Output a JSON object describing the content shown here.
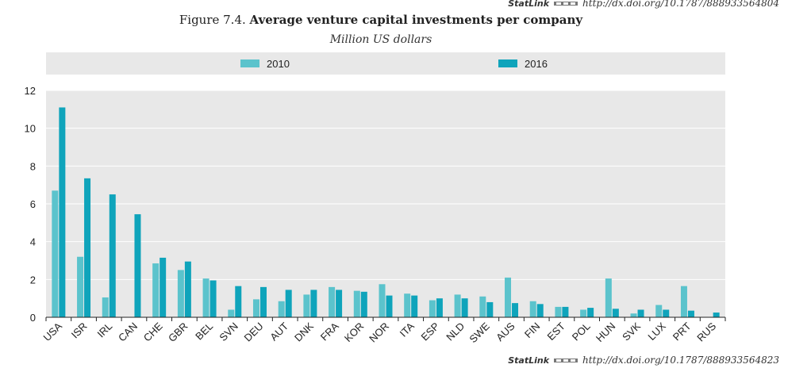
{
  "statlink_top": {
    "brand": "StatLink",
    "url": "http://dx.doi.org/10.1787/888933564804"
  },
  "statlink_bottom": {
    "brand": "StatLink",
    "url": "http://dx.doi.org/10.1787/888933564823"
  },
  "figure_number": "Figure 7.4.",
  "title": "Average venture capital investments per company",
  "subtitle": "Million US dollars",
  "colors": {
    "s2010": "#5bc3cc",
    "s2016": "#0fa4bb",
    "plot_bg": "#e8e8e8",
    "grid": "#ffffff"
  },
  "chart_data": {
    "type": "bar",
    "title": "Average venture capital investments per company",
    "subtitle": "Million US dollars",
    "categories": [
      "USA",
      "ISR",
      "IRL",
      "CAN",
      "CHE",
      "GBR",
      "BEL",
      "SVN",
      "DEU",
      "AUT",
      "DNK",
      "FRA",
      "KOR",
      "NOR",
      "ITA",
      "ESP",
      "NLD",
      "SWE",
      "AUS",
      "FIN",
      "EST",
      "POL",
      "HUN",
      "SVK",
      "LUX",
      "PRT",
      "RUS"
    ],
    "series": [
      {
        "name": "2010",
        "values": [
          6.7,
          3.2,
          1.05,
          0,
          2.85,
          2.5,
          2.05,
          0.4,
          0.95,
          0.85,
          1.2,
          1.6,
          1.4,
          1.75,
          1.25,
          0.9,
          1.2,
          1.1,
          2.1,
          0.85,
          0.55,
          0.4,
          2.05,
          0.2,
          0.65,
          1.65,
          0
        ]
      },
      {
        "name": "2016",
        "values": [
          11.1,
          7.35,
          6.5,
          5.45,
          3.15,
          2.95,
          1.95,
          1.65,
          1.6,
          1.45,
          1.45,
          1.45,
          1.35,
          1.15,
          1.15,
          1.0,
          1.0,
          0.8,
          0.75,
          0.7,
          0.55,
          0.5,
          0.45,
          0.4,
          0.4,
          0.35,
          0.25
        ]
      }
    ],
    "ylim": [
      0,
      12
    ],
    "yticks": [
      0,
      2,
      4,
      6,
      8,
      10,
      12
    ],
    "grid": true,
    "legend": "top-center"
  }
}
